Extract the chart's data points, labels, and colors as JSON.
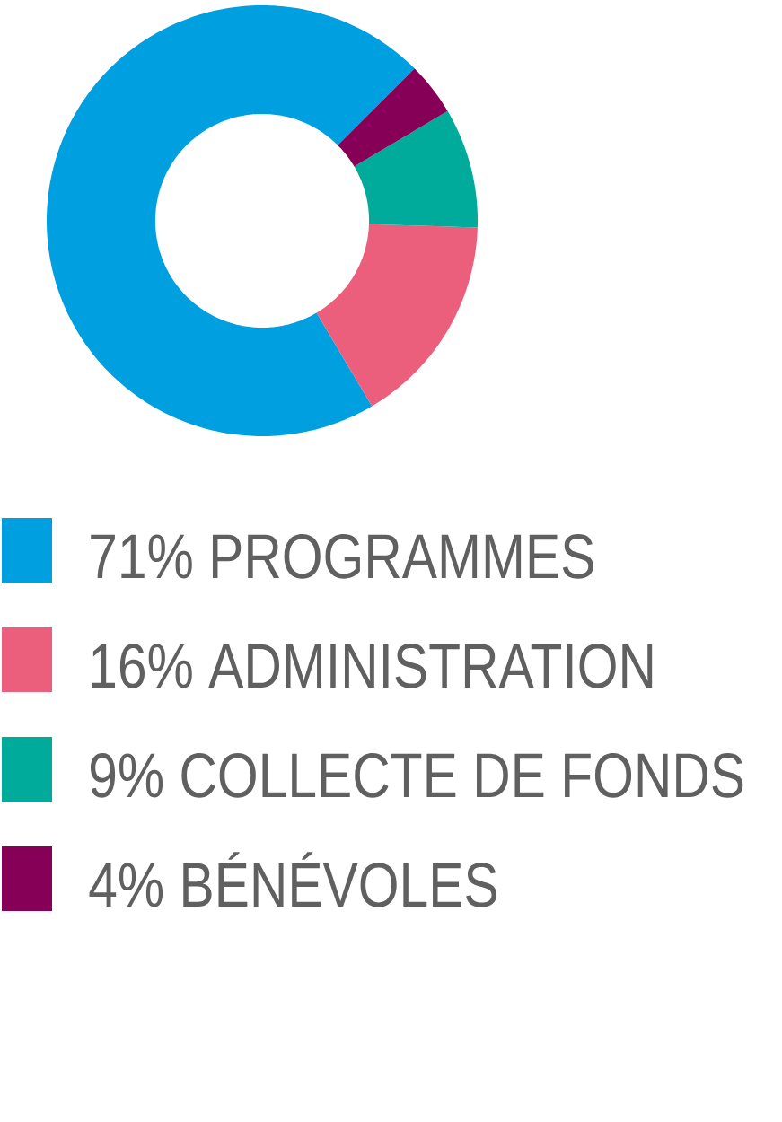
{
  "chart_data": {
    "type": "donut",
    "categories": [
      "71% PROGRAMMES",
      "16% ADMINISTRATION",
      "9% COLLECTE DE FONDS",
      "4% BÉNÉVOLES"
    ],
    "values": [
      71,
      16,
      9,
      4
    ],
    "colors": [
      "#009fe0",
      "#eb5f7c",
      "#00ab9c",
      "#870057"
    ],
    "legend": "bottom"
  }
}
